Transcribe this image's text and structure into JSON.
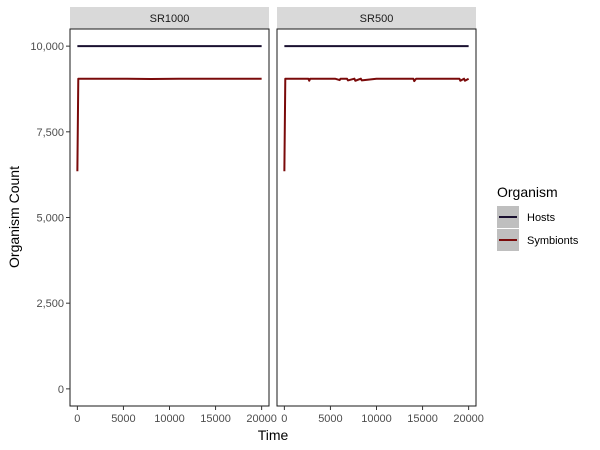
{
  "chart_data": {
    "type": "line",
    "xlabel": "Time",
    "ylabel": "Organism Count",
    "xlim": [
      -800,
      20800
    ],
    "ylim": [
      -500,
      10500
    ],
    "x_ticks": [
      0,
      5000,
      10000,
      15000,
      20000
    ],
    "x_tick_labels": [
      "0",
      "5000",
      "10000",
      "15000",
      "20000"
    ],
    "y_ticks": [
      0,
      2500,
      5000,
      7500,
      10000
    ],
    "y_tick_labels": [
      "0",
      "2,500",
      "5,000",
      "7,500",
      "10,000"
    ],
    "grid": false,
    "legend": {
      "title": "Organism",
      "position": "right",
      "entries": [
        {
          "name": "Hosts",
          "color": "#1a1030"
        },
        {
          "name": "Symbionts",
          "color": "#7a0a0a"
        }
      ]
    },
    "panels": [
      {
        "strip_label": "SR1000",
        "series": [
          {
            "name": "Hosts",
            "color": "#1a1030",
            "x": [
              0,
              20000
            ],
            "y": [
              10000,
              10000
            ]
          },
          {
            "name": "Symbionts",
            "color": "#7a0a0a",
            "x": [
              0,
              100,
              200,
              2000,
              5000,
              8000,
              11000,
              14000,
              17000,
              20000
            ],
            "y": [
              6350,
              9050,
              9050,
              9050,
              9050,
              9040,
              9050,
              9050,
              9050,
              9050
            ]
          }
        ]
      },
      {
        "strip_label": "SR500",
        "series": [
          {
            "name": "Hosts",
            "color": "#1a1030",
            "x": [
              0,
              20000
            ],
            "y": [
              10000,
              10000
            ]
          },
          {
            "name": "Symbionts",
            "color": "#7a0a0a",
            "x": [
              0,
              100,
              200,
              2600,
              2700,
              2800,
              5500,
              6000,
              6100,
              6800,
              6900,
              7600,
              7700,
              8300,
              8400,
              10000,
              14000,
              14100,
              14300,
              19000,
              19100,
              19500,
              19600,
              20000
            ],
            "y": [
              6350,
              9050,
              9050,
              9050,
              8990,
              9050,
              9050,
              9010,
              9050,
              9050,
              9000,
              9050,
              8990,
              9050,
              9000,
              9050,
              9050,
              8980,
              9050,
              9050,
              8990,
              9050,
              8990,
              9050
            ]
          }
        ]
      }
    ]
  }
}
